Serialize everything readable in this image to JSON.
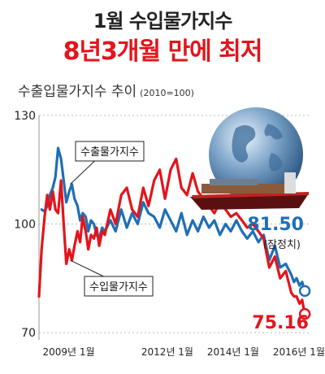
{
  "headline": {
    "line1": "1월 수입물가지수",
    "line2": "8년3개월 만에 최저"
  },
  "colors": {
    "export": "#1f6fb5",
    "import": "#e3141b",
    "headline_accent": "#e3141b",
    "grid": "#bbbbbb"
  },
  "illustration": {
    "name": "globe-with-cargo-ship-illustration"
  },
  "chart_data": {
    "type": "line",
    "title": "수출입물가지수 추이",
    "base_note": "(2010=100)",
    "x_ticks": [
      {
        "x": 2009.0,
        "label": "2009년 1월"
      },
      {
        "x": 2012.0,
        "label": "2012년 1월"
      },
      {
        "x": 2014.0,
        "label": "2014년 1월"
      },
      {
        "x": 2016.0,
        "label": "2016년 1월"
      }
    ],
    "xlim": [
      2008.0,
      2016.2
    ],
    "y_ticks": [
      70,
      100,
      130
    ],
    "ylim": [
      68,
      130
    ],
    "grid": "horizontal dotted",
    "series": [
      {
        "name": "수출물가지수",
        "color": "#1f6fb5",
        "end_label": "81.50",
        "end_note": "(잠정치)",
        "points": [
          [
            2008.08,
            104
          ],
          [
            2008.17,
            103.5
          ],
          [
            2008.25,
            105
          ],
          [
            2008.33,
            108
          ],
          [
            2008.42,
            110
          ],
          [
            2008.5,
            113
          ],
          [
            2008.58,
            121
          ],
          [
            2008.67,
            118
          ],
          [
            2008.75,
            112
          ],
          [
            2008.83,
            106
          ],
          [
            2008.92,
            109
          ],
          [
            2009.0,
            111
          ],
          [
            2009.08,
            107
          ],
          [
            2009.17,
            105
          ],
          [
            2009.25,
            101
          ],
          [
            2009.33,
            103
          ],
          [
            2009.42,
            102
          ],
          [
            2009.5,
            98
          ],
          [
            2009.58,
            101
          ],
          [
            2009.67,
            100
          ],
          [
            2009.75,
            97
          ],
          [
            2009.83,
            96
          ],
          [
            2009.92,
            99
          ],
          [
            2010.0,
            98
          ],
          [
            2010.17,
            101
          ],
          [
            2010.33,
            98
          ],
          [
            2010.5,
            104
          ],
          [
            2010.67,
            99
          ],
          [
            2010.83,
            103
          ],
          [
            2011.0,
            100
          ],
          [
            2011.17,
            106
          ],
          [
            2011.33,
            103
          ],
          [
            2011.5,
            102
          ],
          [
            2011.67,
            99
          ],
          [
            2011.83,
            104
          ],
          [
            2012.0,
            101
          ],
          [
            2012.17,
            98
          ],
          [
            2012.33,
            103
          ],
          [
            2012.5,
            97
          ],
          [
            2012.67,
            101
          ],
          [
            2012.83,
            98
          ],
          [
            2013.0,
            102
          ],
          [
            2013.17,
            99
          ],
          [
            2013.33,
            101
          ],
          [
            2013.5,
            97
          ],
          [
            2013.67,
            100
          ],
          [
            2013.83,
            98
          ],
          [
            2014.0,
            101
          ],
          [
            2014.17,
            98
          ],
          [
            2014.33,
            96
          ],
          [
            2014.5,
            98
          ],
          [
            2014.67,
            95
          ],
          [
            2014.83,
            97
          ],
          [
            2015.0,
            90
          ],
          [
            2015.17,
            94
          ],
          [
            2015.33,
            88
          ],
          [
            2015.5,
            89
          ],
          [
            2015.67,
            86
          ],
          [
            2015.75,
            84
          ],
          [
            2015.83,
            85
          ],
          [
            2015.92,
            83
          ],
          [
            2016.0,
            84
          ],
          [
            2016.08,
            81.5
          ]
        ]
      },
      {
        "name": "수입물가지수",
        "color": "#e3141b",
        "end_label": "75.16",
        "points": [
          [
            2008.0,
            80
          ],
          [
            2008.08,
            93
          ],
          [
            2008.17,
            102
          ],
          [
            2008.25,
            108
          ],
          [
            2008.33,
            104
          ],
          [
            2008.42,
            109
          ],
          [
            2008.5,
            104
          ],
          [
            2008.58,
            103
          ],
          [
            2008.67,
            112
          ],
          [
            2008.75,
            100
          ],
          [
            2008.83,
            89
          ],
          [
            2008.92,
            93
          ],
          [
            2009.0,
            90
          ],
          [
            2009.08,
            94
          ],
          [
            2009.17,
            98
          ],
          [
            2009.25,
            95
          ],
          [
            2009.33,
            102
          ],
          [
            2009.42,
            98
          ],
          [
            2009.5,
            93
          ],
          [
            2009.58,
            97
          ],
          [
            2009.67,
            96
          ],
          [
            2009.75,
            99
          ],
          [
            2009.83,
            94
          ],
          [
            2009.92,
            98
          ],
          [
            2010.0,
            97
          ],
          [
            2010.17,
            104
          ],
          [
            2010.33,
            100
          ],
          [
            2010.5,
            108
          ],
          [
            2010.67,
            110
          ],
          [
            2010.83,
            104
          ],
          [
            2011.0,
            102
          ],
          [
            2011.17,
            110
          ],
          [
            2011.33,
            105
          ],
          [
            2011.5,
            112
          ],
          [
            2011.67,
            115
          ],
          [
            2011.83,
            107
          ],
          [
            2012.0,
            115
          ],
          [
            2012.17,
            118
          ],
          [
            2012.33,
            110
          ],
          [
            2012.5,
            108
          ],
          [
            2012.67,
            114
          ],
          [
            2012.83,
            109
          ],
          [
            2013.0,
            107
          ],
          [
            2013.17,
            105
          ],
          [
            2013.33,
            103
          ],
          [
            2013.5,
            106
          ],
          [
            2013.67,
            104
          ],
          [
            2013.83,
            102
          ],
          [
            2014.0,
            103
          ],
          [
            2014.17,
            101
          ],
          [
            2014.33,
            99
          ],
          [
            2014.5,
            100
          ],
          [
            2014.67,
            98
          ],
          [
            2014.83,
            96
          ],
          [
            2015.0,
            88
          ],
          [
            2015.17,
            91
          ],
          [
            2015.33,
            85
          ],
          [
            2015.5,
            87
          ],
          [
            2015.67,
            81
          ],
          [
            2015.75,
            80
          ],
          [
            2015.83,
            80
          ],
          [
            2015.92,
            78
          ],
          [
            2016.0,
            79
          ],
          [
            2016.08,
            75.16
          ]
        ]
      }
    ]
  }
}
